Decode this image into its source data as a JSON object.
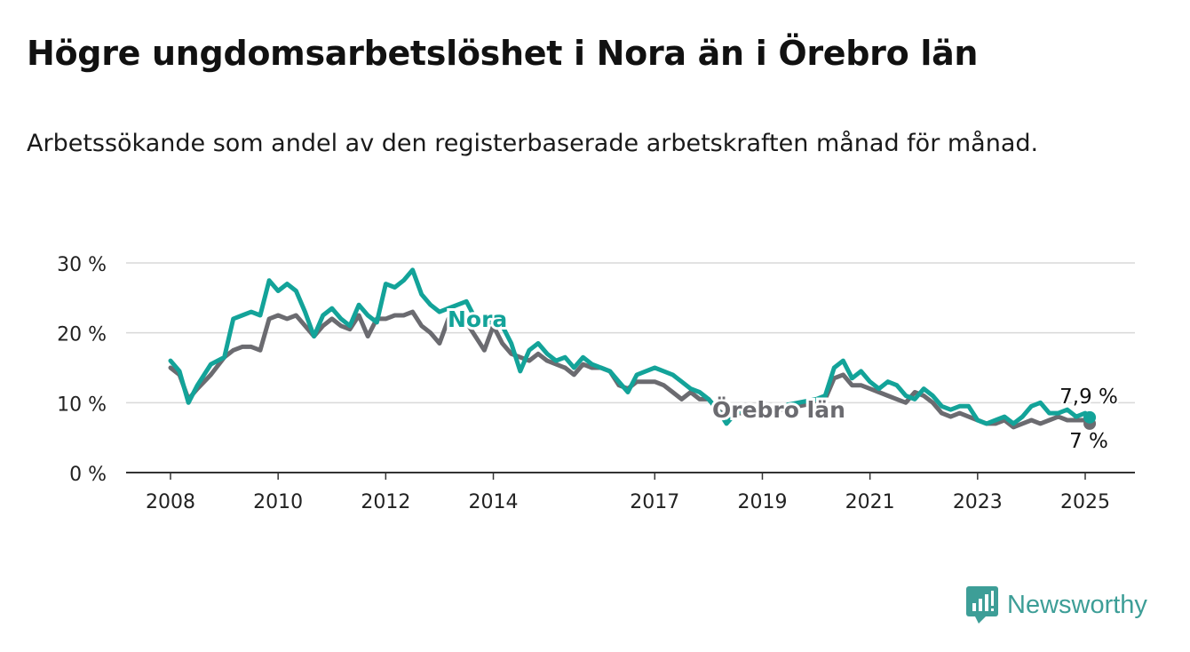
{
  "title": "Högre ungdomsarbetslöshet i Nora än i Örebro län",
  "subtitle": "Arbetssökande som andel av den registerbaserade arbetskraften månad för månad.",
  "brand": {
    "name": "Newsworthy",
    "icon": "newsworthy-logo-icon"
  },
  "colors": {
    "nora": "#13a399",
    "lan": "#6b6b70",
    "grid": "#d9d9d9",
    "axis": "#333333"
  },
  "chart_data": {
    "type": "line",
    "title": "Högre ungdomsarbetslöshet i Nora än i Örebro län",
    "ylim": [
      0,
      30
    ],
    "y_ticks": [
      0,
      10,
      20,
      30
    ],
    "y_tick_labels": [
      "0 %",
      "10 %",
      "20 %",
      "30 %"
    ],
    "x_tick_labels": [
      "2008",
      "2010",
      "2012",
      "2014",
      "2017",
      "2019",
      "2021",
      "2023",
      "2025"
    ],
    "grid": true,
    "series": [
      {
        "name": "Nora",
        "end_label": "7,9 %",
        "points": [
          [
            "2008-01",
            16.0
          ],
          [
            "2008-03",
            14.5
          ],
          [
            "2008-05",
            10.0
          ],
          [
            "2008-07",
            12.5
          ],
          [
            "2008-10",
            15.5
          ],
          [
            "2009-01",
            16.5
          ],
          [
            "2009-03",
            22.0
          ],
          [
            "2009-05",
            22.5
          ],
          [
            "2009-07",
            23.0
          ],
          [
            "2009-09",
            22.5
          ],
          [
            "2009-11",
            27.5
          ],
          [
            "2010-01",
            26.0
          ],
          [
            "2010-03",
            27.0
          ],
          [
            "2010-05",
            26.0
          ],
          [
            "2010-07",
            23.0
          ],
          [
            "2010-09",
            19.5
          ],
          [
            "2010-11",
            22.5
          ],
          [
            "2011-01",
            23.5
          ],
          [
            "2011-03",
            22.0
          ],
          [
            "2011-05",
            21.0
          ],
          [
            "2011-07",
            24.0
          ],
          [
            "2011-09",
            22.5
          ],
          [
            "2011-11",
            21.5
          ],
          [
            "2012-01",
            27.0
          ],
          [
            "2012-03",
            26.5
          ],
          [
            "2012-05",
            27.5
          ],
          [
            "2012-07",
            29.0
          ],
          [
            "2012-09",
            25.5
          ],
          [
            "2012-11",
            24.0
          ],
          [
            "2013-01",
            23.0
          ],
          [
            "2013-03",
            23.5
          ],
          [
            "2013-05",
            24.0
          ],
          [
            "2013-07",
            24.5
          ],
          [
            "2013-09",
            22.0
          ],
          [
            "2013-11",
            21.5
          ],
          [
            "2014-01",
            21.5
          ],
          [
            "2014-03",
            21.0
          ],
          [
            "2014-05",
            18.5
          ],
          [
            "2014-07",
            14.5
          ],
          [
            "2014-09",
            17.5
          ],
          [
            "2014-11",
            18.5
          ],
          [
            "2015-01",
            17.0
          ],
          [
            "2015-03",
            16.0
          ],
          [
            "2015-05",
            16.5
          ],
          [
            "2015-07",
            15.0
          ],
          [
            "2015-09",
            16.5
          ],
          [
            "2015-11",
            15.5
          ],
          [
            "2016-01",
            15.0
          ],
          [
            "2016-03",
            14.5
          ],
          [
            "2016-05",
            13.0
          ],
          [
            "2016-07",
            11.5
          ],
          [
            "2016-09",
            14.0
          ],
          [
            "2016-11",
            14.5
          ],
          [
            "2017-01",
            15.0
          ],
          [
            "2017-03",
            14.5
          ],
          [
            "2017-05",
            14.0
          ],
          [
            "2017-07",
            13.0
          ],
          [
            "2017-09",
            12.0
          ],
          [
            "2017-11",
            11.5
          ],
          [
            "2018-01",
            10.5
          ],
          [
            "2018-03",
            9.0
          ],
          [
            "2018-05",
            7.0
          ],
          [
            "2018-07",
            8.5
          ],
          [
            "2018-09",
            9.0
          ],
          [
            "2018-11",
            8.5
          ],
          [
            "2019-01",
            9.0
          ],
          [
            "2019-05",
            9.5
          ],
          [
            "2019-09",
            10.0
          ],
          [
            "2020-01",
            10.5
          ],
          [
            "2020-03",
            11.0
          ],
          [
            "2020-05",
            15.0
          ],
          [
            "2020-07",
            16.0
          ],
          [
            "2020-09",
            13.5
          ],
          [
            "2020-11",
            14.5
          ],
          [
            "2021-01",
            13.0
          ],
          [
            "2021-03",
            12.0
          ],
          [
            "2021-05",
            13.0
          ],
          [
            "2021-07",
            12.5
          ],
          [
            "2021-09",
            11.0
          ],
          [
            "2021-11",
            10.5
          ],
          [
            "2022-01",
            12.0
          ],
          [
            "2022-03",
            11.0
          ],
          [
            "2022-05",
            9.5
          ],
          [
            "2022-07",
            9.0
          ],
          [
            "2022-09",
            9.5
          ],
          [
            "2022-11",
            9.5
          ],
          [
            "2023-01",
            7.5
          ],
          [
            "2023-03",
            7.0
          ],
          [
            "2023-05",
            7.5
          ],
          [
            "2023-07",
            8.0
          ],
          [
            "2023-09",
            7.0
          ],
          [
            "2023-11",
            8.0
          ],
          [
            "2024-01",
            9.5
          ],
          [
            "2024-03",
            10.0
          ],
          [
            "2024-05",
            8.5
          ],
          [
            "2024-07",
            8.5
          ],
          [
            "2024-09",
            9.0
          ],
          [
            "2024-11",
            8.0
          ],
          [
            "2025-01",
            8.5
          ],
          [
            "2025-02",
            7.9
          ]
        ]
      },
      {
        "name": "Örebro län",
        "end_label": "7 %",
        "points": [
          [
            "2008-01",
            15.0
          ],
          [
            "2008-03",
            14.0
          ],
          [
            "2008-05",
            10.5
          ],
          [
            "2008-07",
            12.0
          ],
          [
            "2008-10",
            14.0
          ],
          [
            "2009-01",
            16.5
          ],
          [
            "2009-03",
            17.5
          ],
          [
            "2009-05",
            18.0
          ],
          [
            "2009-07",
            18.0
          ],
          [
            "2009-09",
            17.5
          ],
          [
            "2009-11",
            22.0
          ],
          [
            "2010-01",
            22.5
          ],
          [
            "2010-03",
            22.0
          ],
          [
            "2010-05",
            22.5
          ],
          [
            "2010-07",
            21.0
          ],
          [
            "2010-09",
            19.5
          ],
          [
            "2010-11",
            21.0
          ],
          [
            "2011-01",
            22.0
          ],
          [
            "2011-03",
            21.0
          ],
          [
            "2011-05",
            20.5
          ],
          [
            "2011-07",
            22.5
          ],
          [
            "2011-09",
            19.5
          ],
          [
            "2011-11",
            22.0
          ],
          [
            "2012-01",
            22.0
          ],
          [
            "2012-03",
            22.5
          ],
          [
            "2012-05",
            22.5
          ],
          [
            "2012-07",
            23.0
          ],
          [
            "2012-09",
            21.0
          ],
          [
            "2012-11",
            20.0
          ],
          [
            "2013-01",
            18.5
          ],
          [
            "2013-03",
            22.0
          ],
          [
            "2013-05",
            22.0
          ],
          [
            "2013-07",
            21.5
          ],
          [
            "2013-09",
            19.5
          ],
          [
            "2013-11",
            17.5
          ],
          [
            "2014-01",
            21.0
          ],
          [
            "2014-03",
            18.5
          ],
          [
            "2014-05",
            17.0
          ],
          [
            "2014-07",
            16.5
          ],
          [
            "2014-09",
            16.0
          ],
          [
            "2014-11",
            17.0
          ],
          [
            "2015-01",
            16.0
          ],
          [
            "2015-03",
            15.5
          ],
          [
            "2015-05",
            15.0
          ],
          [
            "2015-07",
            14.0
          ],
          [
            "2015-09",
            15.5
          ],
          [
            "2015-11",
            15.0
          ],
          [
            "2016-01",
            15.0
          ],
          [
            "2016-03",
            14.5
          ],
          [
            "2016-05",
            12.5
          ],
          [
            "2016-07",
            12.0
          ],
          [
            "2016-09",
            13.0
          ],
          [
            "2016-11",
            13.0
          ],
          [
            "2017-01",
            13.0
          ],
          [
            "2017-03",
            12.5
          ],
          [
            "2017-05",
            11.5
          ],
          [
            "2017-07",
            10.5
          ],
          [
            "2017-09",
            11.5
          ],
          [
            "2017-11",
            10.5
          ],
          [
            "2018-01",
            10.5
          ],
          [
            "2018-03",
            9.0
          ],
          [
            "2018-05",
            8.0
          ],
          [
            "2018-07",
            8.5
          ],
          [
            "2018-09",
            8.5
          ],
          [
            "2018-11",
            8.0
          ],
          [
            "2019-01",
            8.5
          ],
          [
            "2019-05",
            9.0
          ],
          [
            "2019-09",
            9.5
          ],
          [
            "2020-01",
            10.0
          ],
          [
            "2020-03",
            10.5
          ],
          [
            "2020-05",
            13.5
          ],
          [
            "2020-07",
            14.0
          ],
          [
            "2020-09",
            12.5
          ],
          [
            "2020-11",
            12.5
          ],
          [
            "2021-01",
            12.0
          ],
          [
            "2021-03",
            11.5
          ],
          [
            "2021-05",
            11.0
          ],
          [
            "2021-07",
            10.5
          ],
          [
            "2021-09",
            10.0
          ],
          [
            "2021-11",
            11.5
          ],
          [
            "2022-01",
            11.0
          ],
          [
            "2022-03",
            10.0
          ],
          [
            "2022-05",
            8.5
          ],
          [
            "2022-07",
            8.0
          ],
          [
            "2022-09",
            8.5
          ],
          [
            "2022-11",
            8.0
          ],
          [
            "2023-01",
            7.5
          ],
          [
            "2023-03",
            7.0
          ],
          [
            "2023-05",
            7.0
          ],
          [
            "2023-07",
            7.5
          ],
          [
            "2023-09",
            6.5
          ],
          [
            "2023-11",
            7.0
          ],
          [
            "2024-01",
            7.5
          ],
          [
            "2024-03",
            7.0
          ],
          [
            "2024-05",
            7.5
          ],
          [
            "2024-07",
            8.0
          ],
          [
            "2024-09",
            7.5
          ],
          [
            "2024-11",
            7.5
          ],
          [
            "2025-01",
            7.5
          ],
          [
            "2025-02",
            7.0
          ]
        ]
      }
    ]
  }
}
